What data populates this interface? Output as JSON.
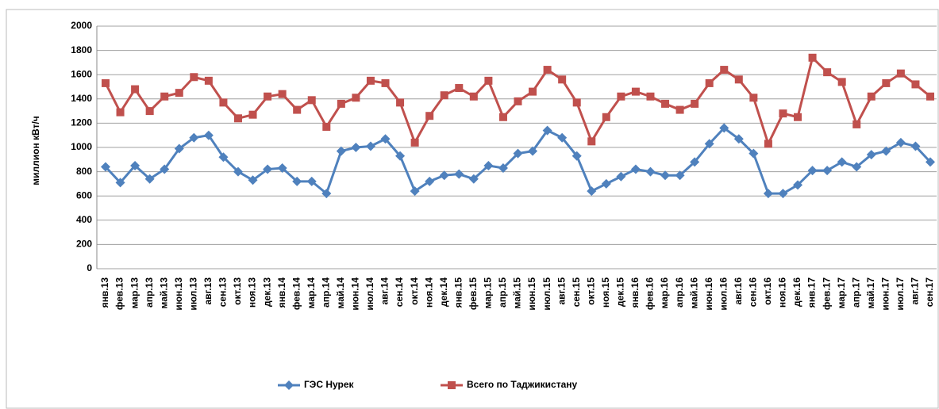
{
  "chart_data": {
    "type": "line",
    "y_label": "миллион кВт/ч",
    "categories": [
      "янв.13",
      "фев.13",
      "мар.13",
      "апр.13",
      "май.13",
      "июн.13",
      "июл.13",
      "авг.13",
      "сен.13",
      "окт.13",
      "ноя.13",
      "дек.13",
      "янв.14",
      "фев.14",
      "мар.14",
      "апр.14",
      "май.14",
      "июн.14",
      "июл.14",
      "авг.14",
      "сен.14",
      "окт.14",
      "ноя.14",
      "дек.14",
      "янв.15",
      "фев.15",
      "мар.15",
      "апр.15",
      "май.15",
      "июн.15",
      "июл.15",
      "авг.15",
      "сен.15",
      "окт.15",
      "ноя.15",
      "дек.15",
      "янв.16",
      "фев.16",
      "мар.16",
      "апр.16",
      "май.16",
      "июн.16",
      "июл.16",
      "авг.16",
      "сен.16",
      "окт.16",
      "ноя.16",
      "дек.16",
      "янв.17",
      "фев.17",
      "мар.17",
      "апр.17",
      "май.17",
      "июн.17",
      "июл.17",
      "авг.17",
      "сен.17"
    ],
    "series": [
      {
        "name": "ГЭС Нурек",
        "color": "#4f81bd",
        "marker": "diamond",
        "values": [
          840,
          710,
          850,
          740,
          820,
          990,
          1080,
          1100,
          920,
          800,
          730,
          820,
          830,
          720,
          720,
          620,
          970,
          1000,
          1010,
          1070,
          930,
          640,
          720,
          770,
          780,
          740,
          850,
          830,
          950,
          970,
          1140,
          1080,
          930,
          640,
          700,
          760,
          820,
          800,
          770,
          770,
          880,
          1030,
          1160,
          1070,
          950,
          620,
          620,
          690,
          810,
          810,
          880,
          840,
          940,
          970,
          1040,
          1010,
          880
        ]
      },
      {
        "name": "Всего по Таджикистану",
        "color": "#c0504d",
        "marker": "square",
        "values": [
          1530,
          1290,
          1480,
          1300,
          1420,
          1450,
          1580,
          1550,
          1370,
          1240,
          1270,
          1420,
          1440,
          1310,
          1390,
          1170,
          1360,
          1410,
          1550,
          1530,
          1370,
          1040,
          1260,
          1430,
          1490,
          1420,
          1550,
          1250,
          1380,
          1460,
          1640,
          1560,
          1370,
          1050,
          1250,
          1420,
          1460,
          1420,
          1360,
          1310,
          1360,
          1530,
          1640,
          1560,
          1410,
          1030,
          1280,
          1250,
          1740,
          1620,
          1540,
          1190,
          1420,
          1530,
          1610,
          1520,
          1420
        ]
      }
    ],
    "ylim": [
      0,
      2000
    ],
    "yticks": [
      0,
      200,
      400,
      600,
      800,
      1000,
      1200,
      1400,
      1600,
      1800,
      2000
    ],
    "grid": true
  }
}
